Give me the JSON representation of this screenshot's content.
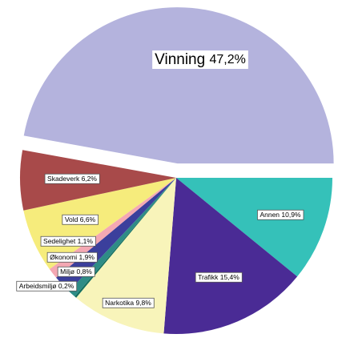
{
  "chart_data": {
    "type": "pie",
    "categories": [
      "Vinning",
      "Annen",
      "Trafikk",
      "Narkotika",
      "Arbeidsmiljø",
      "Miljø",
      "Økonomi",
      "Sedelighet",
      "Vold",
      "Skadeverk"
    ],
    "values": [
      47.2,
      10.9,
      15.4,
      9.8,
      0.2,
      0.8,
      1.9,
      1.1,
      6.6,
      6.2
    ],
    "value_labels": [
      "47,2%",
      "10,9%",
      "15,4%",
      "9,8%",
      "0,2%",
      "0,8%",
      "1,9%",
      "1,1%",
      "6,6%",
      "6,2%"
    ],
    "colors": [
      "#b4b3dd",
      "#35c1b9",
      "#4a2b95",
      "#f8f4ba",
      "#16705f",
      "#2e8c86",
      "#3b3f9c",
      "#f4a8b3",
      "#f6ec7c",
      "#a84a4a"
    ]
  }
}
